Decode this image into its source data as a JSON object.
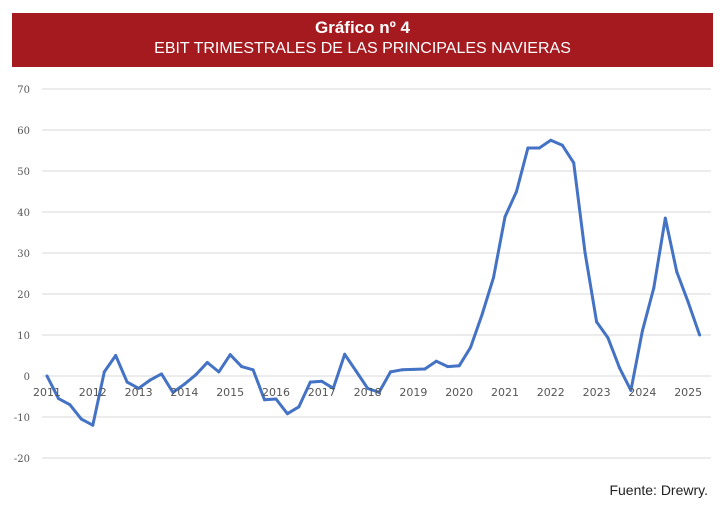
{
  "header": {
    "title": "Gráfico nº 4",
    "subtitle": "EBIT TRIMESTRALES DE LAS PRINCIPALES NAVIERAS"
  },
  "source": "Fuente: Drewry.",
  "colors": {
    "header": "#a51a1f",
    "line": "#4472c4",
    "grid": "#d9d9d9"
  },
  "chart_data": {
    "type": "line",
    "title": "EBIT TRIMESTRALES DE LAS PRINCIPALES NAVIERAS",
    "xlabel": "",
    "ylabel": "",
    "ylim": [
      -20,
      70
    ],
    "yticks": [
      70,
      60,
      50,
      40,
      30,
      20,
      10,
      0,
      -10,
      -20
    ],
    "xticks": [
      "2011",
      "2012",
      "2013",
      "2014",
      "2015",
      "2016",
      "2017",
      "2018",
      "2019",
      "2020",
      "2021",
      "2022",
      "2023",
      "2024",
      "2025"
    ],
    "grid": true,
    "x_start": 2011,
    "x_step": 0.25,
    "series": [
      {
        "name": "EBIT",
        "values": [
          0,
          -5.5,
          -7,
          -10.5,
          -12,
          1,
          5,
          -1.5,
          -3,
          -1,
          0.5,
          -4,
          -2,
          0.3,
          3.3,
          1,
          5.2,
          2.3,
          1.5,
          -5.8,
          -5.6,
          -9.2,
          -7.5,
          -1.5,
          -1.3,
          -3,
          5.3,
          1.2,
          -3,
          -4,
          1,
          1.5,
          1.6,
          1.7,
          3.6,
          2.3,
          2.5,
          7,
          15,
          24,
          38.8,
          45,
          55.6,
          55.6,
          57.5,
          56.3,
          52,
          30,
          13.2,
          9.3,
          2,
          -3.5,
          11,
          21.5,
          38.5,
          25.4,
          18,
          10
        ]
      }
    ]
  }
}
